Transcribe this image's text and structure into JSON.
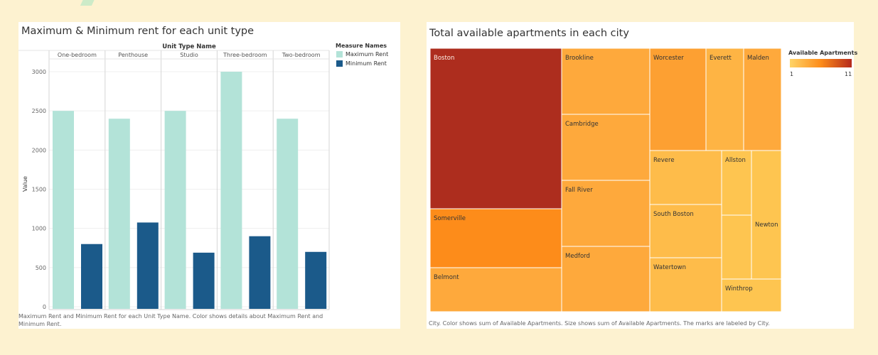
{
  "chart_data": [
    {
      "type": "bar",
      "title": "Maximum & Minimum rent for each unit type",
      "column_header": "Unit Type Name",
      "categories": [
        "One-bedroom",
        "Penthouse",
        "Studio",
        "Three-bedroom",
        "Two-bedroom"
      ],
      "series": [
        {
          "name": "Maximum Rent",
          "color": "#b3e3d8",
          "values": [
            2500,
            2400,
            2500,
            3000,
            2400
          ]
        },
        {
          "name": "Minimum Rent",
          "color": "#1b5a8a",
          "values": [
            800,
            1075,
            690,
            900,
            700
          ]
        }
      ],
      "ylabel": "Value",
      "ylim": [
        0,
        3000
      ],
      "yticks": [
        0,
        500,
        1000,
        1500,
        2000,
        2500,
        3000
      ],
      "grid": true,
      "legend_title": "Measure Names",
      "legend_position": "right",
      "caption": "Maximum Rent and Minimum Rent for each Unit Type Name.  Color shows details about Maximum Rent and Minimum Rent."
    },
    {
      "type": "treemap",
      "title": "Total available apartments in each city",
      "cities": [
        {
          "name": "Boston",
          "color": "#ad2d1e"
        },
        {
          "name": "Somerville",
          "color": "#fd8c1a"
        },
        {
          "name": "Belmont",
          "color": "#fea93c"
        },
        {
          "name": "Brookline",
          "color": "#fea93c"
        },
        {
          "name": "Cambridge",
          "color": "#fea93c"
        },
        {
          "name": "Fall River",
          "color": "#fea93c"
        },
        {
          "name": "Medford",
          "color": "#fea93c"
        },
        {
          "name": "Worcester",
          "color": "#fda032"
        },
        {
          "name": "Everett",
          "color": "#feb444"
        },
        {
          "name": "Malden",
          "color": "#fea93c"
        },
        {
          "name": "Revere",
          "color": "#febc4a"
        },
        {
          "name": "South Boston",
          "color": "#febc4a"
        },
        {
          "name": "Watertown",
          "color": "#febc4a"
        },
        {
          "name": "Allston",
          "color": "#fec550"
        },
        {
          "name": "Newton",
          "color": "#fec550"
        },
        {
          "name": "Winthrop",
          "color": "#fec550"
        }
      ],
      "color_legend": {
        "title": "Available Apartments",
        "min": "1",
        "max": "11",
        "colors": [
          "#fed467",
          "#fd8c1a",
          "#b52a1c"
        ]
      },
      "caption": "City.  Color shows sum of Available Apartments.  Size shows sum of Available Apartments.  The marks are labeled by City."
    }
  ]
}
